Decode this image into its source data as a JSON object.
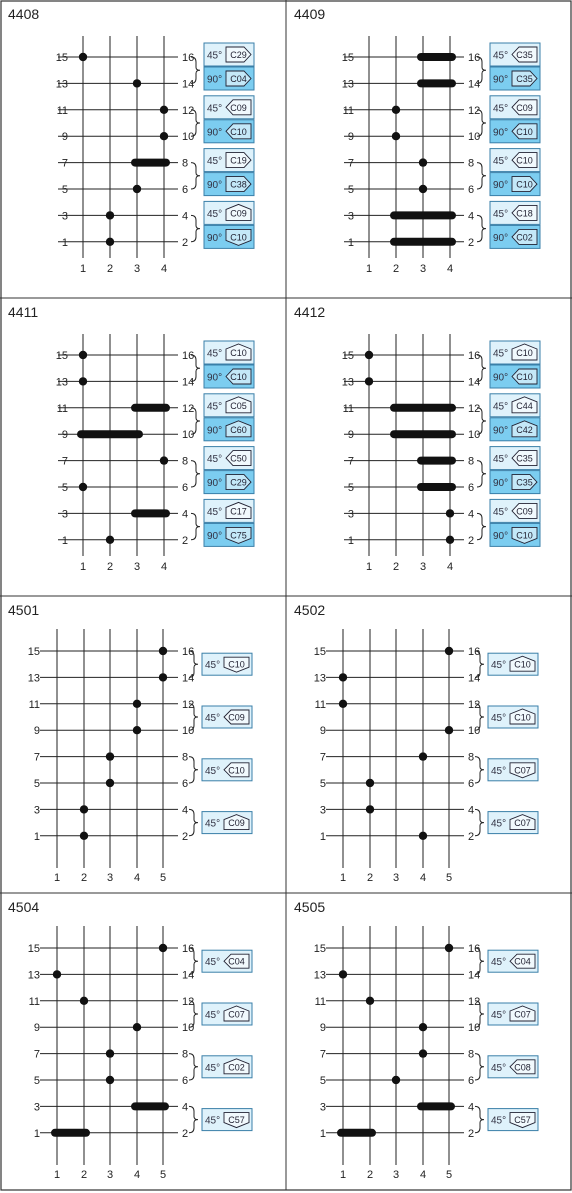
{
  "colors": {
    "frame": "#333333",
    "line": "#222222",
    "dot": "#111111",
    "box_light": "#dff2fb",
    "box_dark": "#7ccdf0",
    "box_border": "#3a7fa8"
  },
  "panels": [
    {
      "id": "4408",
      "columns": [
        "1",
        "2",
        "3",
        "4"
      ],
      "left_labels": [
        "15",
        "13",
        "11",
        "9",
        "7",
        "5",
        "3",
        "1"
      ],
      "right_labels": [
        "16",
        "14",
        "12",
        "10",
        "8",
        "6",
        "4",
        "2"
      ],
      "markers": [
        {
          "row": 0,
          "cols": [
            1
          ]
        },
        {
          "row": 1,
          "cols": [
            3
          ]
        },
        {
          "row": 2,
          "cols": [
            4
          ]
        },
        {
          "row": 3,
          "cols": [
            4
          ]
        },
        {
          "row": 4,
          "cols": [
            3,
            4
          ]
        },
        {
          "row": 5,
          "cols": [
            3
          ]
        },
        {
          "row": 6,
          "cols": [
            2
          ]
        },
        {
          "row": 7,
          "cols": [
            2
          ]
        }
      ],
      "boxes": [
        {
          "angle": "45°",
          "code": "C29",
          "dir": "right",
          "shade": "light"
        },
        {
          "angle": "90°",
          "code": "C04",
          "dir": "right",
          "shade": "dark"
        },
        {
          "angle": "45°",
          "code": "C09",
          "dir": "left",
          "shade": "light"
        },
        {
          "angle": "90°",
          "code": "C10",
          "dir": "left",
          "shade": "dark"
        },
        {
          "angle": "45°",
          "code": "C19",
          "dir": "right",
          "shade": "light"
        },
        {
          "angle": "90°",
          "code": "C38",
          "dir": "right",
          "shade": "dark"
        },
        {
          "angle": "45°",
          "code": "C09",
          "dir": "up",
          "shade": "light"
        },
        {
          "angle": "90°",
          "code": "C10",
          "dir": "down",
          "shade": "dark"
        }
      ]
    },
    {
      "id": "4409",
      "columns": [
        "1",
        "2",
        "3",
        "4"
      ],
      "left_labels": [
        "15",
        "13",
        "11",
        "9",
        "7",
        "5",
        "3",
        "1"
      ],
      "right_labels": [
        "16",
        "14",
        "12",
        "10",
        "8",
        "6",
        "4",
        "2"
      ],
      "markers": [
        {
          "row": 0,
          "cols": [
            3,
            4
          ]
        },
        {
          "row": 1,
          "cols": [
            3,
            4
          ]
        },
        {
          "row": 2,
          "cols": [
            2
          ]
        },
        {
          "row": 3,
          "cols": [
            2
          ]
        },
        {
          "row": 4,
          "cols": [
            3
          ]
        },
        {
          "row": 5,
          "cols": [
            3
          ]
        },
        {
          "row": 6,
          "cols": [
            2,
            4
          ]
        },
        {
          "row": 7,
          "cols": [
            2,
            4
          ]
        }
      ],
      "boxes": [
        {
          "angle": "45°",
          "code": "C35",
          "dir": "left",
          "shade": "light"
        },
        {
          "angle": "90°",
          "code": "C35",
          "dir": "right",
          "shade": "dark"
        },
        {
          "angle": "45°",
          "code": "C09",
          "dir": "left",
          "shade": "light"
        },
        {
          "angle": "90°",
          "code": "C10",
          "dir": "left",
          "shade": "dark"
        },
        {
          "angle": "45°",
          "code": "C10",
          "dir": "left",
          "shade": "light"
        },
        {
          "angle": "90°",
          "code": "C10",
          "dir": "right",
          "shade": "dark"
        },
        {
          "angle": "45°",
          "code": "C18",
          "dir": "left",
          "shade": "light"
        },
        {
          "angle": "90°",
          "code": "C02",
          "dir": "left",
          "shade": "dark"
        }
      ]
    },
    {
      "id": "4411",
      "columns": [
        "1",
        "2",
        "3",
        "4"
      ],
      "left_labels": [
        "15",
        "13",
        "11",
        "9",
        "7",
        "5",
        "3",
        "1"
      ],
      "right_labels": [
        "16",
        "14",
        "12",
        "10",
        "8",
        "6",
        "4",
        "2"
      ],
      "markers": [
        {
          "row": 0,
          "cols": [
            1
          ]
        },
        {
          "row": 1,
          "cols": [
            1
          ]
        },
        {
          "row": 2,
          "cols": [
            3,
            4
          ]
        },
        {
          "row": 3,
          "cols": [
            1,
            3
          ]
        },
        {
          "row": 4,
          "cols": [
            4
          ]
        },
        {
          "row": 5,
          "cols": [
            1
          ]
        },
        {
          "row": 6,
          "cols": [
            3,
            4
          ]
        },
        {
          "row": 7,
          "cols": [
            2
          ]
        }
      ],
      "boxes": [
        {
          "angle": "45°",
          "code": "C10",
          "dir": "up",
          "shade": "light"
        },
        {
          "angle": "90°",
          "code": "C10",
          "dir": "left",
          "shade": "dark"
        },
        {
          "angle": "45°",
          "code": "C05",
          "dir": "up",
          "shade": "light"
        },
        {
          "angle": "90°",
          "code": "C60",
          "dir": "up",
          "shade": "dark"
        },
        {
          "angle": "45°",
          "code": "C50",
          "dir": "left",
          "shade": "light"
        },
        {
          "angle": "90°",
          "code": "C29",
          "dir": "right",
          "shade": "dark"
        },
        {
          "angle": "45°",
          "code": "C17",
          "dir": "up",
          "shade": "light"
        },
        {
          "angle": "90°",
          "code": "C75",
          "dir": "down",
          "shade": "dark"
        }
      ]
    },
    {
      "id": "4412",
      "columns": [
        "1",
        "2",
        "3",
        "4"
      ],
      "left_labels": [
        "15",
        "13",
        "11",
        "9",
        "7",
        "5",
        "3",
        "1"
      ],
      "right_labels": [
        "16",
        "14",
        "12",
        "10",
        "8",
        "6",
        "4",
        "2"
      ],
      "markers": [
        {
          "row": 0,
          "cols": [
            1
          ]
        },
        {
          "row": 1,
          "cols": [
            1
          ]
        },
        {
          "row": 2,
          "cols": [
            2,
            4
          ]
        },
        {
          "row": 3,
          "cols": [
            2,
            4
          ]
        },
        {
          "row": 4,
          "cols": [
            3,
            4
          ]
        },
        {
          "row": 5,
          "cols": [
            3,
            4
          ]
        },
        {
          "row": 6,
          "cols": [
            4
          ]
        },
        {
          "row": 7,
          "cols": [
            4
          ]
        }
      ],
      "boxes": [
        {
          "angle": "45°",
          "code": "C10",
          "dir": "up",
          "shade": "light"
        },
        {
          "angle": "90°",
          "code": "C10",
          "dir": "left",
          "shade": "dark"
        },
        {
          "angle": "45°",
          "code": "C44",
          "dir": "up",
          "shade": "light"
        },
        {
          "angle": "90°",
          "code": "C42",
          "dir": "up",
          "shade": "dark"
        },
        {
          "angle": "45°",
          "code": "C35",
          "dir": "left",
          "shade": "light"
        },
        {
          "angle": "90°",
          "code": "C35",
          "dir": "right",
          "shade": "dark"
        },
        {
          "angle": "45°",
          "code": "C09",
          "dir": "left",
          "shade": "light"
        },
        {
          "angle": "90°",
          "code": "C10",
          "dir": "down",
          "shade": "dark"
        }
      ]
    },
    {
      "id": "4501",
      "columns": [
        "1",
        "2",
        "3",
        "4",
        "5"
      ],
      "left_labels": [
        "15",
        "13",
        "11",
        "9",
        "7",
        "5",
        "3",
        "1"
      ],
      "right_labels": [
        "16",
        "14",
        "12",
        "10",
        "8",
        "6",
        "4",
        "2"
      ],
      "markers": [
        {
          "row": 0,
          "cols": [
            5
          ]
        },
        {
          "row": 1,
          "cols": [
            5
          ]
        },
        {
          "row": 2,
          "cols": [
            4
          ]
        },
        {
          "row": 3,
          "cols": [
            4
          ]
        },
        {
          "row": 4,
          "cols": [
            3
          ]
        },
        {
          "row": 5,
          "cols": [
            3
          ]
        },
        {
          "row": 6,
          "cols": [
            2
          ]
        },
        {
          "row": 7,
          "cols": [
            2
          ]
        }
      ],
      "boxes": [
        {
          "angle": "45°",
          "code": "C10",
          "dir": "down",
          "shade": "light"
        },
        {
          "angle": "45°",
          "code": "C09",
          "dir": "left",
          "shade": "light"
        },
        {
          "angle": "45°",
          "code": "C10",
          "dir": "left",
          "shade": "light"
        },
        {
          "angle": "45°",
          "code": "C09",
          "dir": "up",
          "shade": "light"
        }
      ]
    },
    {
      "id": "4502",
      "columns": [
        "1",
        "2",
        "3",
        "4",
        "5"
      ],
      "left_labels": [
        "15",
        "13",
        "11",
        "9",
        "7",
        "5",
        "3",
        "1"
      ],
      "right_labels": [
        "16",
        "14",
        "12",
        "10",
        "8",
        "6",
        "4",
        "2"
      ],
      "markers": [
        {
          "row": 0,
          "cols": [
            5
          ]
        },
        {
          "row": 1,
          "cols": [
            1
          ]
        },
        {
          "row": 2,
          "cols": [
            1
          ]
        },
        {
          "row": 3,
          "cols": [
            5
          ]
        },
        {
          "row": 4,
          "cols": [
            4
          ]
        },
        {
          "row": 5,
          "cols": [
            2
          ]
        },
        {
          "row": 6,
          "cols": [
            2
          ]
        },
        {
          "row": 7,
          "cols": [
            4
          ]
        }
      ],
      "boxes": [
        {
          "angle": "45°",
          "code": "C10",
          "dir": "up",
          "shade": "light"
        },
        {
          "angle": "45°",
          "code": "C10",
          "dir": "up",
          "shade": "light"
        },
        {
          "angle": "45°",
          "code": "C07",
          "dir": "down",
          "shade": "light"
        },
        {
          "angle": "45°",
          "code": "C07",
          "dir": "up",
          "shade": "light"
        }
      ]
    },
    {
      "id": "4504",
      "columns": [
        "1",
        "2",
        "3",
        "4",
        "5"
      ],
      "left_labels": [
        "15",
        "13",
        "11",
        "9",
        "7",
        "5",
        "3",
        "1"
      ],
      "right_labels": [
        "16",
        "14",
        "12",
        "10",
        "8",
        "6",
        "4",
        "2"
      ],
      "markers": [
        {
          "row": 0,
          "cols": [
            5
          ]
        },
        {
          "row": 1,
          "cols": [
            1
          ]
        },
        {
          "row": 2,
          "cols": [
            2
          ]
        },
        {
          "row": 3,
          "cols": [
            4
          ]
        },
        {
          "row": 4,
          "cols": [
            3
          ]
        },
        {
          "row": 5,
          "cols": [
            3
          ]
        },
        {
          "row": 6,
          "cols": [
            4,
            5
          ]
        },
        {
          "row": 7,
          "cols": [
            1,
            2
          ]
        }
      ],
      "boxes": [
        {
          "angle": "45°",
          "code": "C04",
          "dir": "left",
          "shade": "light"
        },
        {
          "angle": "45°",
          "code": "C07",
          "dir": "up",
          "shade": "light"
        },
        {
          "angle": "45°",
          "code": "C02",
          "dir": "up",
          "shade": "light"
        },
        {
          "angle": "45°",
          "code": "C57",
          "dir": "down",
          "shade": "light"
        }
      ]
    },
    {
      "id": "4505",
      "columns": [
        "1",
        "2",
        "3",
        "4",
        "5"
      ],
      "left_labels": [
        "15",
        "13",
        "11",
        "9",
        "7",
        "5",
        "3",
        "1"
      ],
      "right_labels": [
        "16",
        "14",
        "12",
        "10",
        "8",
        "6",
        "4",
        "2"
      ],
      "markers": [
        {
          "row": 0,
          "cols": [
            5
          ]
        },
        {
          "row": 1,
          "cols": [
            1
          ]
        },
        {
          "row": 2,
          "cols": [
            2
          ]
        },
        {
          "row": 3,
          "cols": [
            4
          ]
        },
        {
          "row": 4,
          "cols": [
            4
          ]
        },
        {
          "row": 5,
          "cols": [
            3
          ]
        },
        {
          "row": 6,
          "cols": [
            4,
            5
          ]
        },
        {
          "row": 7,
          "cols": [
            1,
            2
          ]
        }
      ],
      "boxes": [
        {
          "angle": "45°",
          "code": "C04",
          "dir": "left",
          "shade": "light"
        },
        {
          "angle": "45°",
          "code": "C07",
          "dir": "up",
          "shade": "light"
        },
        {
          "angle": "45°",
          "code": "C08",
          "dir": "left",
          "shade": "light"
        },
        {
          "angle": "45°",
          "code": "C57",
          "dir": "down",
          "shade": "light"
        }
      ]
    }
  ]
}
